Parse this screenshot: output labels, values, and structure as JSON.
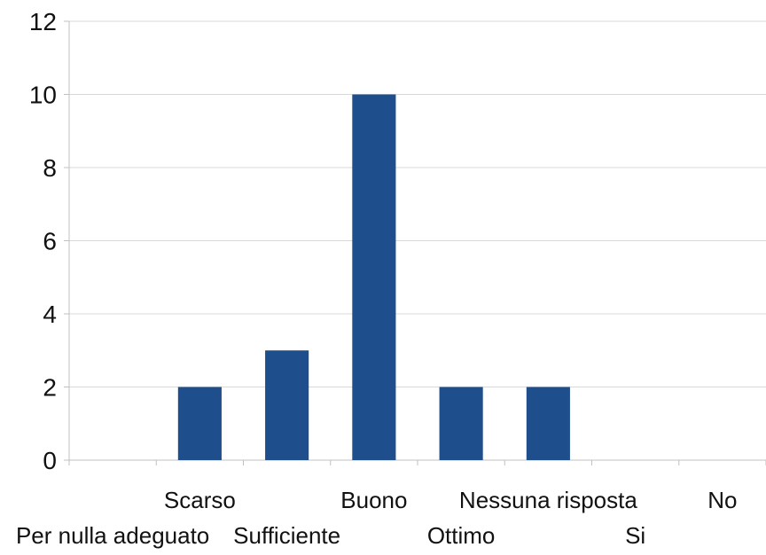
{
  "chart_data": {
    "type": "bar",
    "categories": [
      "Per nulla adeguato",
      "Scarso",
      "Sufficiente",
      "Buono",
      "Ottimo",
      "Nessuna risposta",
      "Si",
      "No"
    ],
    "values": [
      0,
      2,
      3,
      10,
      2,
      2,
      0,
      0
    ],
    "ylim": [
      0,
      12
    ],
    "yticks": [
      0,
      2,
      4,
      6,
      8,
      10,
      12
    ],
    "title": "",
    "xlabel": "",
    "ylabel": "",
    "grid": true,
    "legend": "none",
    "bar_color": "#1f4e8c",
    "grid_color": "#d8d8d8",
    "axis_color": "#c0c0c0"
  }
}
